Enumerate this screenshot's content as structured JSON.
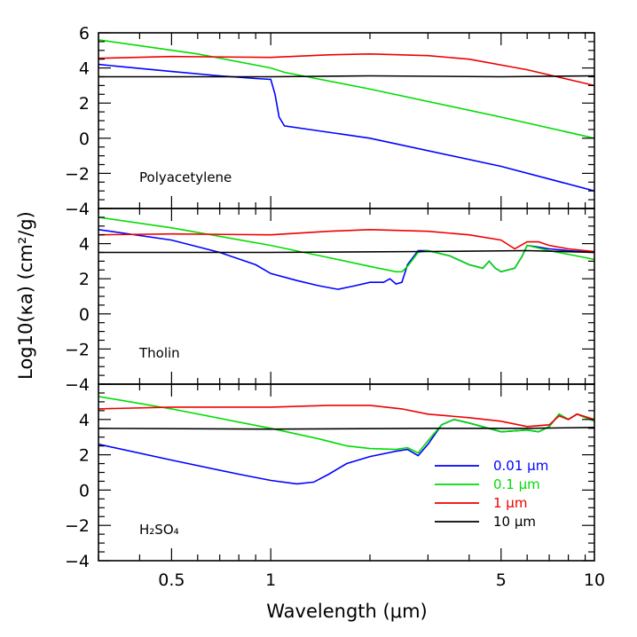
{
  "chart_data": {
    "type": "line",
    "xlabel": "Wavelength (μm)",
    "ylabel": "Log10(κa) (cm²/g)",
    "x_scale": "log",
    "xlim": [
      0.3,
      9.6
    ],
    "ylim": [
      -4,
      6
    ],
    "x_ticks": [
      {
        "value": 0.5,
        "label": "0.5"
      },
      {
        "value": 1,
        "label": "1"
      },
      {
        "value": 5,
        "label": "5"
      },
      {
        "value": 10,
        "label": "10"
      }
    ],
    "colors": {
      "0.01": "#0000ff",
      "0.1": "#00dd00",
      "1": "#ee0000",
      "10": "#000000"
    },
    "legend": {
      "placement": "lower-right of bottom panel",
      "entries": [
        {
          "label": "0.01 μm",
          "color": "#0000ff"
        },
        {
          "label": "0.1 μm",
          "color": "#00dd00"
        },
        {
          "label": "1 μm",
          "color": "#ee0000"
        },
        {
          "label": "10 μm",
          "color": "#000000"
        }
      ]
    },
    "panels": [
      {
        "label": "Polyacetylene",
        "y_ticks": [
          6,
          4,
          2,
          0,
          -2,
          -4
        ],
        "series": [
          {
            "key": "0.01",
            "x": [
              0.3,
              0.5,
              0.7,
              0.9,
              1.0,
              1.03,
              1.06,
              1.1,
              2,
              5,
              9.6
            ],
            "y": [
              4.2,
              3.8,
              3.55,
              3.4,
              3.35,
              2.5,
              1.2,
              0.7,
              0.0,
              -1.6,
              -3.0
            ]
          },
          {
            "key": "0.1",
            "x": [
              0.3,
              0.6,
              1.0,
              1.1,
              2,
              5,
              9.6
            ],
            "y": [
              5.6,
              4.8,
              4.0,
              3.75,
              2.8,
              1.2,
              0.0
            ]
          },
          {
            "key": "1",
            "x": [
              0.3,
              0.5,
              1.0,
              1.5,
              2.0,
              3.0,
              4.0,
              6.0,
              9.6
            ],
            "y": [
              4.55,
              4.65,
              4.6,
              4.75,
              4.8,
              4.7,
              4.5,
              3.9,
              3.0
            ]
          },
          {
            "key": "10",
            "x": [
              0.3,
              1.0,
              2.0,
              5.0,
              9.6
            ],
            "y": [
              3.5,
              3.5,
              3.55,
              3.5,
              3.55
            ]
          }
        ]
      },
      {
        "label": "Tholin",
        "y_ticks": [
          4,
          2,
          0,
          -2,
          -4
        ],
        "series": [
          {
            "key": "0.01",
            "x": [
              0.3,
              0.5,
              0.7,
              0.9,
              1.0,
              1.2,
              1.4,
              1.6,
              1.8,
              2.0,
              2.2,
              2.3,
              2.4,
              2.5,
              2.6,
              2.8,
              3.0,
              3.5,
              4.0,
              4.4,
              4.6,
              4.8,
              5.0,
              5.5,
              5.8,
              6.0,
              6.5,
              7.0,
              8.0,
              9.6
            ],
            "y": [
              4.8,
              4.2,
              3.5,
              2.8,
              2.3,
              1.9,
              1.6,
              1.4,
              1.6,
              1.8,
              1.8,
              2.0,
              1.7,
              1.8,
              2.8,
              3.6,
              3.6,
              3.3,
              2.8,
              2.6,
              3.0,
              2.6,
              2.4,
              2.6,
              3.3,
              3.9,
              3.8,
              3.7,
              3.6,
              3.5
            ]
          },
          {
            "key": "0.1",
            "x": [
              0.3,
              0.5,
              1.0,
              1.5,
              2.0,
              2.4,
              2.5,
              2.6,
              2.8,
              3.0,
              3.5,
              4.0,
              4.4,
              4.6,
              4.8,
              5.0,
              5.5,
              5.8,
              6.0,
              7.0,
              9.6
            ],
            "y": [
              5.5,
              4.9,
              3.9,
              3.2,
              2.7,
              2.4,
              2.4,
              2.7,
              3.5,
              3.6,
              3.3,
              2.8,
              2.6,
              3.0,
              2.6,
              2.4,
              2.6,
              3.3,
              3.9,
              3.6,
              3.1
            ]
          },
          {
            "key": "1",
            "x": [
              0.3,
              0.5,
              1.0,
              1.5,
              2.0,
              3.0,
              4.0,
              5.0,
              5.5,
              6.0,
              6.5,
              7.0,
              8.0,
              9.6
            ],
            "y": [
              4.5,
              4.55,
              4.5,
              4.7,
              4.8,
              4.7,
              4.5,
              4.2,
              3.7,
              4.1,
              4.1,
              3.9,
              3.7,
              3.55
            ]
          },
          {
            "key": "10",
            "x": [
              0.3,
              1.0,
              3.0,
              6.0,
              9.6
            ],
            "y": [
              3.5,
              3.5,
              3.55,
              3.6,
              3.5
            ]
          }
        ]
      },
      {
        "label": "H₂SO₄",
        "y_ticks": [
          4,
          2,
          0,
          -2,
          -4
        ],
        "series": [
          {
            "key": "0.01",
            "x": [
              0.3,
              0.5,
              0.8,
              1.0,
              1.2,
              1.35,
              1.5,
              1.7,
              2.0,
              2.4,
              2.6,
              2.8,
              3.0,
              3.3,
              3.6,
              4.0,
              5.0,
              6.0,
              6.5,
              7.0,
              7.5,
              8.0,
              8.5,
              9.6
            ],
            "y": [
              2.6,
              1.7,
              0.9,
              0.55,
              0.35,
              0.45,
              0.9,
              1.5,
              1.9,
              2.2,
              2.3,
              1.95,
              2.6,
              3.7,
              4.0,
              3.8,
              3.3,
              3.4,
              3.3,
              3.6,
              4.3,
              4.0,
              4.3,
              3.9
            ]
          },
          {
            "key": "0.1",
            "x": [
              0.3,
              0.5,
              1.0,
              1.4,
              1.7,
              2.0,
              2.4,
              2.6,
              2.8,
              3.0,
              3.3,
              3.6,
              4.0,
              5.0,
              6.0,
              6.5,
              7.0,
              7.5,
              8.0,
              8.5,
              9.6
            ],
            "y": [
              5.3,
              4.6,
              3.5,
              2.9,
              2.5,
              2.35,
              2.3,
              2.4,
              2.1,
              2.8,
              3.7,
              4.0,
              3.8,
              3.3,
              3.4,
              3.3,
              3.6,
              4.3,
              4.0,
              4.3,
              3.9
            ]
          },
          {
            "key": "1",
            "x": [
              0.3,
              0.5,
              1.0,
              1.5,
              2.0,
              2.5,
              3.0,
              4.0,
              5.0,
              6.0,
              7.0,
              7.5,
              8.0,
              8.5,
              9.6
            ],
            "y": [
              4.6,
              4.7,
              4.7,
              4.8,
              4.8,
              4.6,
              4.3,
              4.1,
              3.9,
              3.6,
              3.7,
              4.2,
              4.0,
              4.3,
              4.0
            ]
          },
          {
            "key": "10",
            "x": [
              0.3,
              1.0,
              3.0,
              6.0,
              9.6
            ],
            "y": [
              3.5,
              3.45,
              3.5,
              3.5,
              3.55
            ]
          }
        ]
      }
    ]
  }
}
